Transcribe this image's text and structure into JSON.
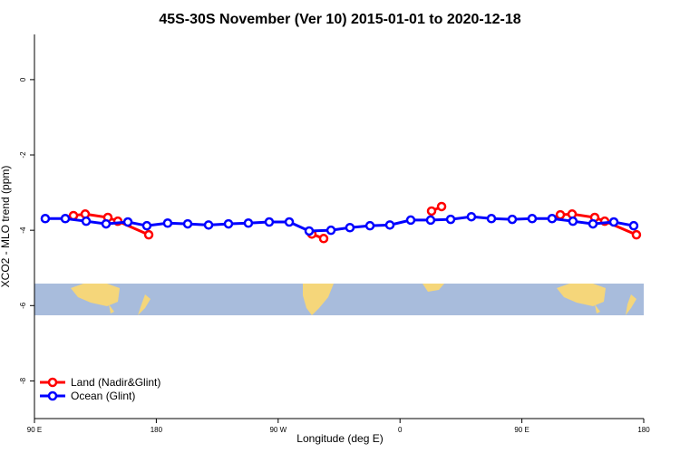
{
  "chart_data": {
    "type": "line",
    "title": "45S-30S November (Ver 10)   2015-01-01 to 2020-12-18",
    "x_label": "Longitude (deg E)",
    "y_label": "XCO2 - MLO trend (ppm)",
    "xlim": [
      90,
      540
    ],
    "xticks": [
      {
        "value": 90,
        "label": "90 E"
      },
      180,
      {
        "value": 270,
        "label": "90 W"
      },
      {
        "value": 360,
        "label": "0"
      },
      {
        "value": 450,
        "label": "90 E"
      },
      {
        "value": 540,
        "label": "180"
      }
    ],
    "ylim": [
      -9,
      1.2
    ],
    "yticks": [
      0,
      -2,
      -4,
      -6,
      -8
    ],
    "legend": "bottom-left",
    "series": [
      {
        "name": "Land (Nadir&Glint)",
        "color": "#ff0000",
        "x": [
          118.8,
          127.5,
          144.2,
          151.6,
          174.4,
          null,
          294.9,
          303.6,
          null,
          383.3,
          390.7,
          null,
          478.4,
          487.1,
          503.8,
          511.2,
          534.6
        ],
        "values": [
          -3.61,
          -3.57,
          -3.66,
          -3.76,
          -4.12,
          null,
          -4.1,
          -4.22,
          null,
          -3.49,
          -3.37,
          null,
          -3.59,
          -3.57,
          -3.66,
          -3.76,
          -4.12
        ]
      },
      {
        "name": "Ocean (Glint)",
        "color": "#0000ff",
        "x": [
          98,
          112.8,
          128.2,
          142.9,
          159,
          173,
          188.4,
          203.2,
          218.6,
          233.3,
          248,
          263.4,
          278.2,
          292.9,
          309,
          323,
          337.8,
          352.5,
          367.9,
          382.6,
          397.4,
          412.7,
          427.5,
          442.9,
          457.6,
          472.3,
          487.7,
          502.5,
          517.9,
          532.6
        ],
        "values": [
          -3.69,
          -3.69,
          -3.76,
          -3.83,
          -3.78,
          -3.88,
          -3.81,
          -3.83,
          -3.86,
          -3.83,
          -3.81,
          -3.78,
          -3.78,
          -4.02,
          -4.0,
          -3.93,
          -3.88,
          -3.86,
          -3.73,
          -3.73,
          -3.71,
          -3.64,
          -3.69,
          -3.71,
          -3.69,
          -3.69,
          -3.76,
          -3.83,
          -3.78,
          -3.88
        ]
      }
    ]
  }
}
